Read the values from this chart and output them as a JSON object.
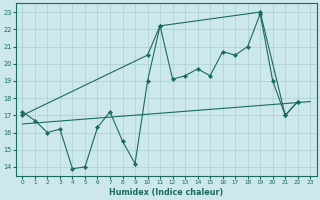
{
  "xlabel": "Humidex (Indice chaleur)",
  "bg_color": "#cde8ec",
  "grid_color": "#a8cdd4",
  "line_color": "#1a6b5a",
  "xlim": [
    -0.5,
    23.5
  ],
  "ylim": [
    13.5,
    23.5
  ],
  "xticks": [
    0,
    1,
    2,
    3,
    4,
    5,
    6,
    7,
    8,
    9,
    10,
    11,
    12,
    13,
    14,
    15,
    16,
    17,
    18,
    19,
    20,
    21,
    22,
    23
  ],
  "yticks": [
    14,
    15,
    16,
    17,
    18,
    19,
    20,
    21,
    22,
    23
  ],
  "line1_x": [
    0,
    1,
    2,
    3,
    4,
    5,
    6,
    7,
    8,
    9,
    10,
    11,
    12,
    13,
    14,
    15,
    16,
    17,
    18,
    19,
    20,
    21,
    22
  ],
  "line1_y": [
    17.2,
    16.7,
    16.0,
    16.2,
    13.9,
    14.0,
    16.3,
    17.2,
    15.5,
    14.2,
    19.0,
    22.2,
    19.1,
    19.3,
    19.7,
    19.3,
    20.7,
    20.5,
    21.0,
    22.9,
    19.0,
    17.0,
    17.8
  ],
  "line2_x": [
    0,
    10,
    11,
    19,
    21,
    22
  ],
  "line2_y": [
    17.0,
    20.5,
    22.2,
    23.0,
    17.0,
    17.8
  ],
  "line3_x": [
    0,
    23
  ],
  "line3_y": [
    16.5,
    17.8
  ]
}
